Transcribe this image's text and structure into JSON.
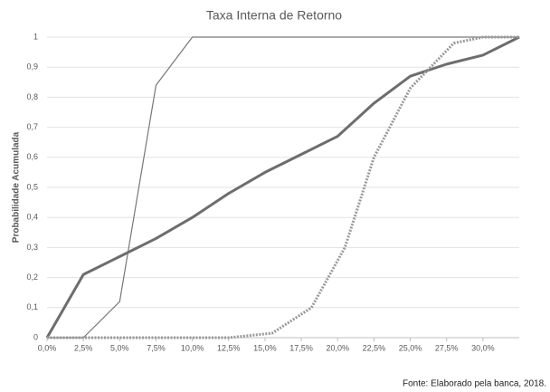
{
  "chart_data": {
    "type": "line",
    "title": "Taxa Interna de Retorno",
    "y_label": "Probabilidade Acumulada",
    "source": "Fonte: Elaborado pela banca, 2018.",
    "xlim": [
      0,
      32.5
    ],
    "ylim": [
      0,
      1
    ],
    "xticks": [
      {
        "value": 0,
        "label": "0,0%"
      },
      {
        "value": 2.5,
        "label": "2,5%"
      },
      {
        "value": 5,
        "label": "5,0%"
      },
      {
        "value": 7.5,
        "label": "7,5%"
      },
      {
        "value": 10,
        "label": "10,0%"
      },
      {
        "value": 12.5,
        "label": "12,5%"
      },
      {
        "value": 15,
        "label": "15,0%"
      },
      {
        "value": 17.5,
        "label": "17,5%"
      },
      {
        "value": 20,
        "label": "20,0%"
      },
      {
        "value": 22.5,
        "label": "22,5%"
      },
      {
        "value": 25,
        "label": "25,0%"
      },
      {
        "value": 27.5,
        "label": "27,5%"
      },
      {
        "value": 30,
        "label": "30,0%"
      }
    ],
    "yticks": [
      0,
      {
        "value": 0.1,
        "label": "0,1"
      },
      {
        "value": 0.2,
        "label": "0,2"
      },
      {
        "value": 0.3,
        "label": "0,3"
      },
      {
        "value": 0.4,
        "label": "0,4"
      },
      {
        "value": 0.5,
        "label": "0,5"
      },
      {
        "value": 0.6,
        "label": "0,6"
      },
      {
        "value": 0.7,
        "label": "0,7"
      },
      {
        "value": 0.8,
        "label": "0,8"
      },
      {
        "value": 0.9,
        "label": "0,9"
      },
      1
    ],
    "grid": true,
    "series": [
      {
        "color": "#777777",
        "width": 1.2,
        "dash": "solid",
        "x": [
          0,
          2.5,
          5,
          7.5,
          10,
          32.5
        ],
        "values": [
          0,
          0,
          0.12,
          0.84,
          1,
          1
        ]
      },
      {
        "color": "#6d6d6d",
        "width": 3,
        "dash": "solid",
        "x": [
          0,
          2.5,
          5,
          7.5,
          10,
          12.5,
          15,
          17.5,
          20,
          22.5,
          25,
          27.5,
          30,
          32.5
        ],
        "values": [
          0,
          0.21,
          0.27,
          0.33,
          0.4,
          0.48,
          0.55,
          0.61,
          0.67,
          0.78,
          0.87,
          0.91,
          0.94,
          1
        ]
      },
      {
        "color": "#9a9a9a",
        "width": 3,
        "dash": "dotted",
        "x": [
          0,
          12.5,
          15.5,
          18.2,
          20.5,
          22.5,
          25,
          26,
          28,
          30,
          32.5
        ],
        "values": [
          0,
          0,
          0.015,
          0.1,
          0.3,
          0.6,
          0.83,
          0.88,
          0.98,
          1,
          1
        ]
      }
    ]
  }
}
